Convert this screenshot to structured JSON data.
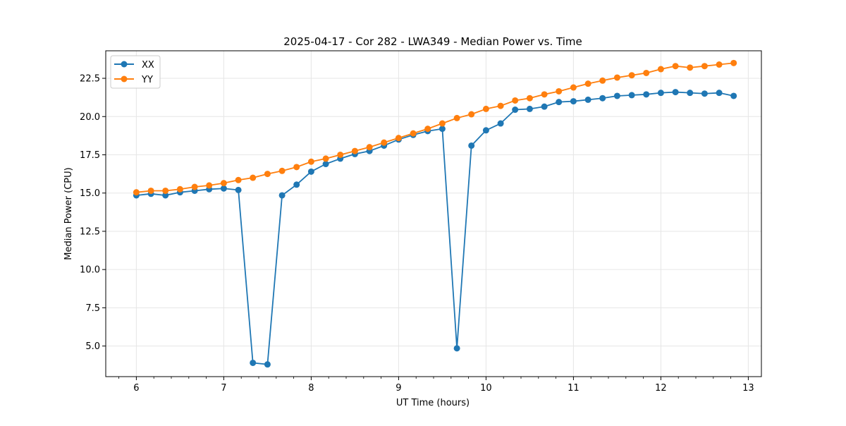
{
  "chart_data": {
    "type": "line",
    "title": "2025-04-17 - Cor 282 - LWA349 - Median Power vs. Time",
    "xlabel": "UT Time (hours)",
    "ylabel": "Median Power (CPU)",
    "xlim": [
      5.65,
      13.15
    ],
    "ylim": [
      3.0,
      24.3
    ],
    "grid": true,
    "legend_position": "top-left",
    "x_ticks": [
      6,
      7,
      8,
      9,
      10,
      11,
      12,
      13
    ],
    "y_ticks": [
      5.0,
      7.5,
      10.0,
      12.5,
      15.0,
      17.5,
      20.0,
      22.5
    ],
    "x_tick_labels": [
      "6",
      "7",
      "8",
      "9",
      "10",
      "11",
      "12",
      "13"
    ],
    "y_tick_labels": [
      "5.0",
      "7.5",
      "10.0",
      "12.5",
      "15.0",
      "17.5",
      "20.0",
      "22.5"
    ],
    "x": [
      6.0,
      6.167,
      6.333,
      6.5,
      6.667,
      6.833,
      7.0,
      7.167,
      7.333,
      7.5,
      7.667,
      7.833,
      8.0,
      8.167,
      8.333,
      8.5,
      8.667,
      8.833,
      9.0,
      9.167,
      9.333,
      9.5,
      9.667,
      9.833,
      10.0,
      10.167,
      10.333,
      10.5,
      10.667,
      10.833,
      11.0,
      11.167,
      11.333,
      11.5,
      11.667,
      11.833,
      12.0,
      12.167,
      12.333,
      12.5,
      12.667,
      12.833
    ],
    "series": [
      {
        "name": "XX",
        "color": "#1f77b4",
        "values": [
          14.85,
          14.95,
          14.85,
          15.05,
          15.15,
          15.25,
          15.3,
          15.2,
          3.9,
          3.8,
          14.85,
          15.55,
          16.4,
          16.9,
          17.25,
          17.55,
          17.75,
          18.1,
          18.5,
          18.8,
          19.05,
          19.2,
          4.85,
          18.1,
          19.1,
          19.55,
          20.45,
          20.5,
          20.65,
          20.95,
          21.0,
          21.1,
          21.2,
          21.35,
          21.4,
          21.45,
          21.55,
          21.6,
          21.55,
          21.5,
          21.55,
          21.35
        ]
      },
      {
        "name": "YY",
        "color": "#ff7f0e",
        "values": [
          15.05,
          15.15,
          15.15,
          15.25,
          15.4,
          15.5,
          15.65,
          15.85,
          16.0,
          16.25,
          16.45,
          16.7,
          17.05,
          17.25,
          17.5,
          17.75,
          18.0,
          18.3,
          18.6,
          18.9,
          19.2,
          19.55,
          19.9,
          20.15,
          20.5,
          20.7,
          21.05,
          21.2,
          21.45,
          21.65,
          21.9,
          22.15,
          22.35,
          22.55,
          22.7,
          22.85,
          23.1,
          23.3,
          23.2,
          23.3,
          23.4,
          23.5
        ]
      }
    ]
  }
}
